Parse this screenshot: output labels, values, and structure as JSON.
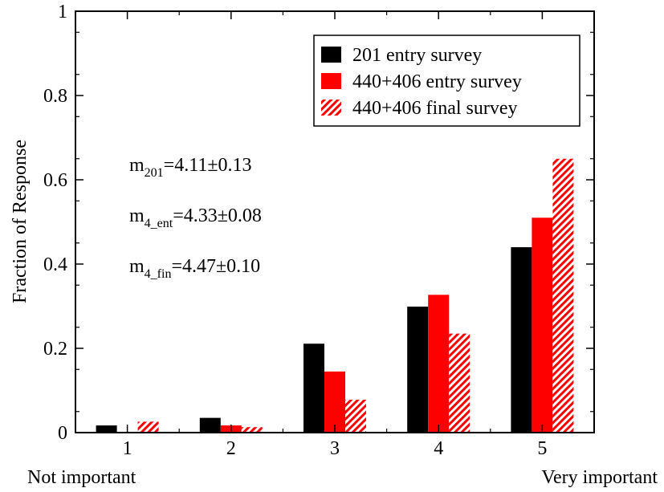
{
  "chart_data": {
    "type": "bar",
    "title": "",
    "xlabel": "",
    "ylabel": "Fraction of Response",
    "categories": [
      "1",
      "2",
      "3",
      "4",
      "5"
    ],
    "category_end_labels": {
      "left": "Not important",
      "right": "Very important"
    },
    "ylim": [
      0,
      1
    ],
    "xlim": [
      0.5,
      5.5
    ],
    "yticks": [
      "0",
      "0.2",
      "0.4",
      "0.6",
      "0.8",
      "1"
    ],
    "ytick_values": [
      0,
      0.2,
      0.4,
      0.6,
      0.8,
      1.0
    ],
    "grid": false,
    "legend_position": "top-right",
    "series": [
      {
        "name": "201 entry survey",
        "values": [
          0.017,
          0.035,
          0.211,
          0.299,
          0.44
        ],
        "color": "#000000",
        "pattern": "solid"
      },
      {
        "name": "440+406 entry survey",
        "values": [
          0.0,
          0.017,
          0.145,
          0.327,
          0.51
        ],
        "color": "#ff0000",
        "pattern": "solid"
      },
      {
        "name": "440+406 final survey",
        "values": [
          0.026,
          0.013,
          0.078,
          0.235,
          0.65
        ],
        "color": "#ff0000",
        "pattern": "hatched"
      }
    ],
    "annotations": [
      {
        "base": "m",
        "sub": "201",
        "rest": "=4.11±0.13"
      },
      {
        "base": "m",
        "sub": "4_ent",
        "rest": "=4.33±0.08"
      },
      {
        "base": "m",
        "sub": "4_fin",
        "rest": "=4.47±0.10"
      }
    ]
  }
}
